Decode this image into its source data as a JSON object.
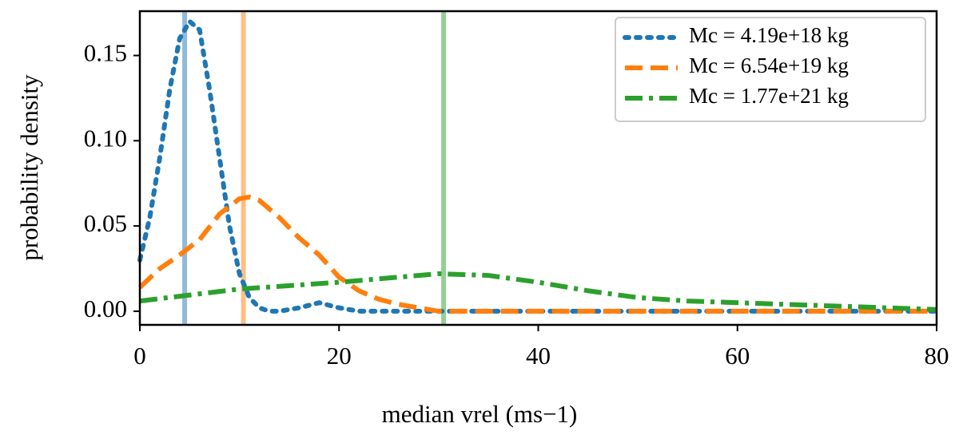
{
  "chart_data": {
    "type": "line",
    "xlabel": "median vrel (ms−1)",
    "ylabel": "probability density",
    "xlim": [
      0,
      80
    ],
    "ylim": [
      -0.008,
      0.176
    ],
    "xticks": [
      0,
      20,
      40,
      60,
      80
    ],
    "yticks": [
      {
        "value": 0,
        "label": "0.00"
      },
      {
        "value": 0.05,
        "label": "0.05"
      },
      {
        "value": 0.1,
        "label": "0.10"
      },
      {
        "value": 0.15,
        "label": "0.15"
      }
    ],
    "legend": "upper right",
    "series": [
      {
        "name": "Mc = 4.19e+18 kg",
        "color": "#1f77b4",
        "linestyle": "dotted",
        "x": [
          0,
          1,
          2,
          3,
          4,
          5,
          6,
          7,
          8,
          9,
          10,
          11,
          12,
          13,
          14,
          16,
          18,
          20,
          22,
          30,
          40,
          50,
          60,
          70,
          80
        ],
        "values": [
          0.03,
          0.055,
          0.09,
          0.13,
          0.16,
          0.17,
          0.165,
          0.13,
          0.09,
          0.05,
          0.022,
          0.008,
          0.002,
          0,
          0,
          0.002,
          0.005,
          0.002,
          0,
          0,
          0,
          0,
          0,
          0,
          0
        ]
      },
      {
        "name": "Mc = 6.54e+19 kg",
        "color": "#ff7f0e",
        "linestyle": "dashed",
        "x": [
          0,
          2,
          4,
          6,
          8,
          10,
          11,
          12,
          14,
          16,
          18,
          20,
          22,
          24,
          26,
          28,
          30,
          40,
          50,
          60,
          70,
          80
        ],
        "values": [
          0.014,
          0.025,
          0.033,
          0.042,
          0.057,
          0.066,
          0.067,
          0.065,
          0.055,
          0.043,
          0.033,
          0.02,
          0.012,
          0.007,
          0.004,
          0.002,
          0,
          0,
          0,
          0,
          0,
          0
        ]
      },
      {
        "name": "Mc = 1.77e+21 kg",
        "color": "#2ca02c",
        "linestyle": "dashdot",
        "x": [
          0,
          10,
          20,
          30,
          35,
          40,
          45,
          50,
          55,
          60,
          70,
          80
        ],
        "values": [
          0.006,
          0.013,
          0.017,
          0.022,
          0.021,
          0.017,
          0.012,
          0.008,
          0.006,
          0.005,
          0.003,
          0.001
        ]
      }
    ],
    "vlines": [
      {
        "value": 4.5,
        "color": "#1f77b4"
      },
      {
        "value": 10.4,
        "color": "#ff7f0e"
      },
      {
        "value": 30.5,
        "color": "#2ca02c"
      }
    ]
  }
}
